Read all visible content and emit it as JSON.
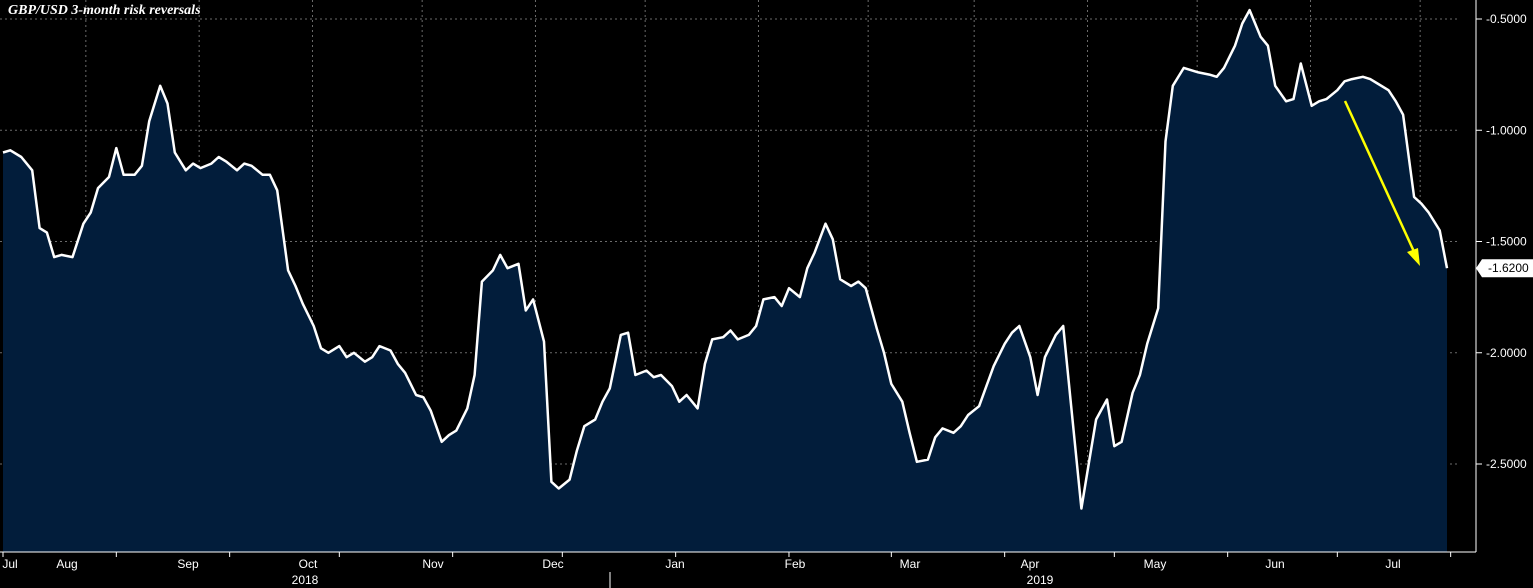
{
  "chart_data": {
    "type": "area",
    "title": "GBP/USD 3-month risk reversals",
    "xlabel": "",
    "ylabel": "",
    "x_tick_labels": [
      "Jul",
      "Aug",
      "Sep",
      "Oct",
      "Nov",
      "Dec",
      "Jan",
      "Feb",
      "Mar",
      "Apr",
      "May",
      "Jun",
      "Jul"
    ],
    "year_labels": [
      "2018",
      "2019"
    ],
    "y_ticks": [
      "-0.5000",
      "-1.0000",
      "-1.5000",
      "-2.0000",
      "-2.5000"
    ],
    "y_tick_values": [
      -0.5,
      -1.0,
      -1.5,
      -2.0,
      -2.5
    ],
    "ylim": [
      -2.9,
      -0.42
    ],
    "xlim": [
      "2018-07-01",
      "2019-07-31"
    ],
    "last_value_label": "-1.6200",
    "grid": true,
    "colors": {
      "line": "#ffffff",
      "fill": "#021d3b",
      "background": "#000000",
      "grid": "#6b6b6b",
      "arrow": "#ffff00"
    },
    "annotation": {
      "type": "arrow",
      "color": "#ffff00",
      "from": [
        "2019-06-20",
        -0.83
      ],
      "to": [
        "2019-07-17",
        -1.57
      ]
    },
    "series": [
      {
        "values": [
          [
            "2018-07-01",
            -1.1
          ],
          [
            "2018-07-03",
            -1.09
          ],
          [
            "2018-07-06",
            -1.12
          ],
          [
            "2018-07-09",
            -1.18
          ],
          [
            "2018-07-11",
            -1.44
          ],
          [
            "2018-07-13",
            -1.46
          ],
          [
            "2018-07-15",
            -1.57
          ],
          [
            "2018-07-17",
            -1.56
          ],
          [
            "2018-07-20",
            -1.57
          ],
          [
            "2018-07-23",
            -1.42
          ],
          [
            "2018-07-25",
            -1.37
          ],
          [
            "2018-07-27",
            -1.26
          ],
          [
            "2018-07-30",
            -1.21
          ],
          [
            "2018-08-01",
            -1.08
          ],
          [
            "2018-08-03",
            -1.2
          ],
          [
            "2018-08-06",
            -1.2
          ],
          [
            "2018-08-08",
            -1.16
          ],
          [
            "2018-08-10",
            -0.96
          ],
          [
            "2018-08-13",
            -0.8
          ],
          [
            "2018-08-15",
            -0.88
          ],
          [
            "2018-08-17",
            -1.1
          ],
          [
            "2018-08-20",
            -1.18
          ],
          [
            "2018-08-22",
            -1.15
          ],
          [
            "2018-08-24",
            -1.17
          ],
          [
            "2018-08-27",
            -1.15
          ],
          [
            "2018-08-29",
            -1.12
          ],
          [
            "2018-08-31",
            -1.14
          ],
          [
            "2018-09-03",
            -1.18
          ],
          [
            "2018-09-05",
            -1.15
          ],
          [
            "2018-09-07",
            -1.16
          ],
          [
            "2018-09-10",
            -1.2
          ],
          [
            "2018-09-12",
            -1.2
          ],
          [
            "2018-09-14",
            -1.27
          ],
          [
            "2018-09-17",
            -1.63
          ],
          [
            "2018-09-19",
            -1.7
          ],
          [
            "2018-09-21",
            -1.78
          ],
          [
            "2018-09-24",
            -1.88
          ],
          [
            "2018-09-26",
            -1.98
          ],
          [
            "2018-09-28",
            -2.0
          ],
          [
            "2018-10-01",
            -1.97
          ],
          [
            "2018-10-03",
            -2.02
          ],
          [
            "2018-10-05",
            -2.0
          ],
          [
            "2018-10-08",
            -2.04
          ],
          [
            "2018-10-10",
            -2.02
          ],
          [
            "2018-10-12",
            -1.97
          ],
          [
            "2018-10-15",
            -1.99
          ],
          [
            "2018-10-17",
            -2.05
          ],
          [
            "2018-10-19",
            -2.09
          ],
          [
            "2018-10-22",
            -2.19
          ],
          [
            "2018-10-24",
            -2.2
          ],
          [
            "2018-10-26",
            -2.26
          ],
          [
            "2018-10-29",
            -2.4
          ],
          [
            "2018-10-31",
            -2.37
          ],
          [
            "2018-11-02",
            -2.35
          ],
          [
            "2018-11-05",
            -2.25
          ],
          [
            "2018-11-07",
            -2.1
          ],
          [
            "2018-11-09",
            -1.68
          ],
          [
            "2018-11-12",
            -1.63
          ],
          [
            "2018-11-14",
            -1.56
          ],
          [
            "2018-11-16",
            -1.62
          ],
          [
            "2018-11-19",
            -1.6
          ],
          [
            "2018-11-21",
            -1.81
          ],
          [
            "2018-11-23",
            -1.76
          ],
          [
            "2018-11-26",
            -1.95
          ],
          [
            "2018-11-28",
            -2.58
          ],
          [
            "2018-11-30",
            -2.61
          ],
          [
            "2018-12-03",
            -2.57
          ],
          [
            "2018-12-05",
            -2.44
          ],
          [
            "2018-12-07",
            -2.33
          ],
          [
            "2018-12-10",
            -2.3
          ],
          [
            "2018-12-12",
            -2.22
          ],
          [
            "2018-12-14",
            -2.16
          ],
          [
            "2018-12-17",
            -1.92
          ],
          [
            "2018-12-19",
            -1.91
          ],
          [
            "2018-12-21",
            -2.1
          ],
          [
            "2018-12-24",
            -2.08
          ],
          [
            "2018-12-26",
            -2.11
          ],
          [
            "2018-12-28",
            -2.1
          ],
          [
            "2018-12-31",
            -2.15
          ],
          [
            "2019-01-02",
            -2.22
          ],
          [
            "2019-01-04",
            -2.19
          ],
          [
            "2019-01-07",
            -2.25
          ],
          [
            "2019-01-09",
            -2.05
          ],
          [
            "2019-01-11",
            -1.94
          ],
          [
            "2019-01-14",
            -1.93
          ],
          [
            "2019-01-16",
            -1.9
          ],
          [
            "2019-01-18",
            -1.94
          ],
          [
            "2019-01-21",
            -1.92
          ],
          [
            "2019-01-23",
            -1.88
          ],
          [
            "2019-01-25",
            -1.76
          ],
          [
            "2019-01-28",
            -1.75
          ],
          [
            "2019-01-30",
            -1.79
          ],
          [
            "2019-02-01",
            -1.71
          ],
          [
            "2019-02-04",
            -1.75
          ],
          [
            "2019-02-06",
            -1.62
          ],
          [
            "2019-02-08",
            -1.55
          ],
          [
            "2019-02-11",
            -1.42
          ],
          [
            "2019-02-13",
            -1.49
          ],
          [
            "2019-02-15",
            -1.67
          ],
          [
            "2019-02-18",
            -1.7
          ],
          [
            "2019-02-20",
            -1.68
          ],
          [
            "2019-02-22",
            -1.71
          ],
          [
            "2019-02-25",
            -1.89
          ],
          [
            "2019-02-27",
            -2.0
          ],
          [
            "2019-03-01",
            -2.14
          ],
          [
            "2019-03-04",
            -2.22
          ],
          [
            "2019-03-06",
            -2.36
          ],
          [
            "2019-03-08",
            -2.49
          ],
          [
            "2019-03-11",
            -2.48
          ],
          [
            "2019-03-13",
            -2.38
          ],
          [
            "2019-03-15",
            -2.34
          ],
          [
            "2019-03-18",
            -2.36
          ],
          [
            "2019-03-20",
            -2.33
          ],
          [
            "2019-03-22",
            -2.28
          ],
          [
            "2019-03-25",
            -2.24
          ],
          [
            "2019-03-27",
            -2.15
          ],
          [
            "2019-03-29",
            -2.06
          ],
          [
            "2019-04-01",
            -1.96
          ],
          [
            "2019-04-03",
            -1.91
          ],
          [
            "2019-04-05",
            -1.88
          ],
          [
            "2019-04-08",
            -2.02
          ],
          [
            "2019-04-10",
            -2.19
          ],
          [
            "2019-04-12",
            -2.02
          ],
          [
            "2019-04-15",
            -1.92
          ],
          [
            "2019-04-17",
            -1.88
          ],
          [
            "2019-04-19",
            -2.21
          ],
          [
            "2019-04-22",
            -2.7
          ],
          [
            "2019-04-24",
            -2.5
          ],
          [
            "2019-04-26",
            -2.3
          ],
          [
            "2019-04-29",
            -2.21
          ],
          [
            "2019-05-01",
            -2.42
          ],
          [
            "2019-05-03",
            -2.4
          ],
          [
            "2019-05-06",
            -2.18
          ],
          [
            "2019-05-08",
            -2.1
          ],
          [
            "2019-05-10",
            -1.96
          ],
          [
            "2019-05-13",
            -1.8
          ],
          [
            "2019-05-15",
            -1.05
          ],
          [
            "2019-05-17",
            -0.8
          ],
          [
            "2019-05-20",
            -0.72
          ],
          [
            "2019-05-22",
            -0.73
          ],
          [
            "2019-05-24",
            -0.74
          ],
          [
            "2019-05-27",
            -0.75
          ],
          [
            "2019-05-29",
            -0.76
          ],
          [
            "2019-05-31",
            -0.72
          ],
          [
            "2019-06-03",
            -0.62
          ],
          [
            "2019-06-05",
            -0.52
          ],
          [
            "2019-06-07",
            -0.46
          ],
          [
            "2019-06-10",
            -0.58
          ],
          [
            "2019-06-12",
            -0.62
          ],
          [
            "2019-06-14",
            -0.8
          ],
          [
            "2019-06-17",
            -0.87
          ],
          [
            "2019-06-19",
            -0.86
          ],
          [
            "2019-06-21",
            -0.7
          ],
          [
            "2019-06-24",
            -0.89
          ],
          [
            "2019-06-26",
            -0.87
          ],
          [
            "2019-06-28",
            -0.86
          ],
          [
            "2019-07-01",
            -0.82
          ],
          [
            "2019-07-03",
            -0.78
          ],
          [
            "2019-07-05",
            -0.77
          ],
          [
            "2019-07-08",
            -0.76
          ],
          [
            "2019-07-10",
            -0.77
          ],
          [
            "2019-07-12",
            -0.79
          ],
          [
            "2019-07-15",
            -0.82
          ],
          [
            "2019-07-17",
            -0.87
          ],
          [
            "2019-07-19",
            -0.93
          ],
          [
            "2019-07-22",
            -1.3
          ],
          [
            "2019-07-24",
            -1.33
          ],
          [
            "2019-07-26",
            -1.37
          ],
          [
            "2019-07-29",
            -1.45
          ],
          [
            "2019-07-31",
            -1.62
          ]
        ]
      }
    ]
  }
}
